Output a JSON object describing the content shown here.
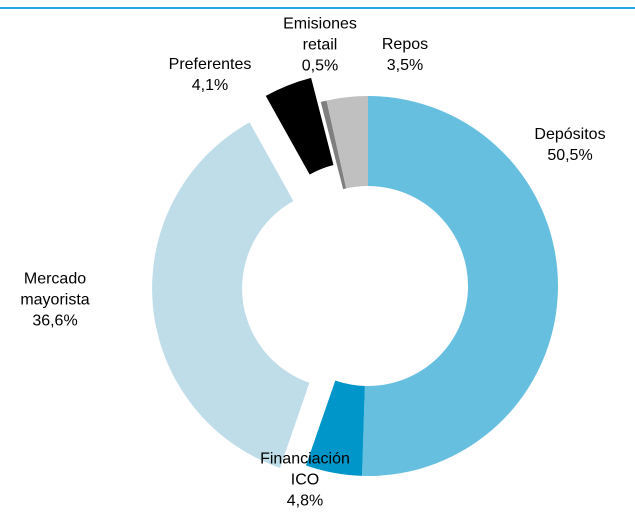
{
  "chart_data": {
    "type": "donut",
    "categories": [
      "Depósitos",
      "Financiación ICO",
      "Mercado mayorista",
      "Preferentes",
      "Emisiones retail",
      "Repos"
    ],
    "values": [
      50.5,
      4.8,
      36.6,
      4.1,
      0.5,
      3.5
    ],
    "value_labels": [
      "50,5%",
      "4,8%",
      "36,6%",
      "4,1%",
      "0,5%",
      "3,5%"
    ],
    "colors": [
      "#66bfde",
      "#0096c9",
      "#bedde8",
      "#000000",
      "#7f7f7f",
      "#c0c0c0"
    ],
    "explode": [
      false,
      false,
      true,
      true,
      false,
      false
    ]
  }
}
